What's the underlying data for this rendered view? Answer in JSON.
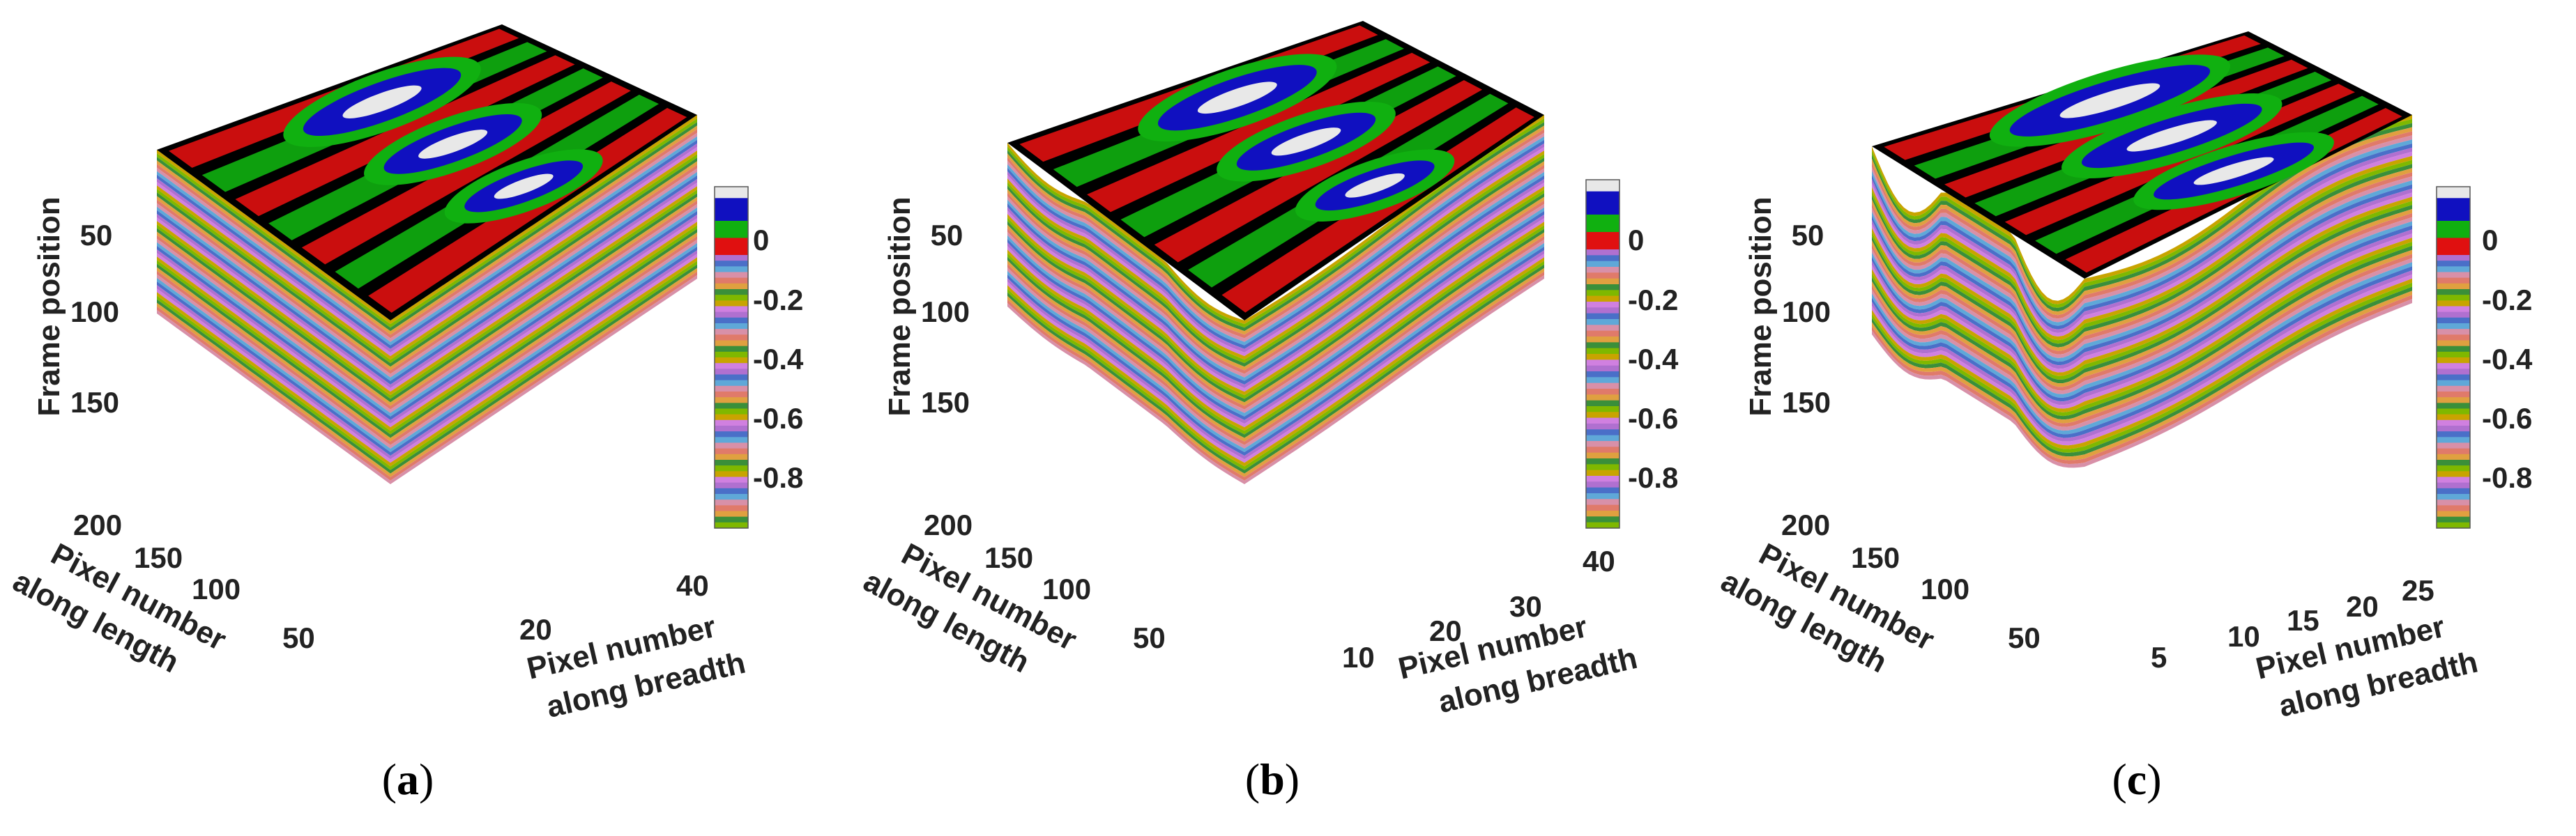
{
  "chart_data": [
    {
      "type": "surface-3d",
      "panel_label": "a",
      "z_label": "Frame position",
      "x_label": [
        "Pixel number",
        "along length"
      ],
      "y_label": [
        "Pixel number",
        "along breadth"
      ],
      "z_ticks": [
        "50",
        "100",
        "150"
      ],
      "x_ticks": [
        "200",
        "150",
        "100",
        "50"
      ],
      "y_ticks": [
        "20",
        "40"
      ],
      "colorbar_ticks": [
        "0",
        "-0.2",
        "-0.4",
        "-0.6",
        "-0.8"
      ],
      "colorbar_range": [
        -0.9,
        0.15
      ],
      "top_blob_count": 3,
      "side_sag": 0.0
    },
    {
      "type": "surface-3d",
      "panel_label": "b",
      "z_label": "Frame position",
      "x_label": [
        "Pixel number",
        "along length"
      ],
      "y_label": [
        "Pixel number",
        "along breadth"
      ],
      "z_ticks": [
        "50",
        "100",
        "150"
      ],
      "x_ticks": [
        "200",
        "150",
        "100",
        "50"
      ],
      "y_ticks": [
        "10",
        "20",
        "30",
        "40"
      ],
      "colorbar_ticks": [
        "0",
        "-0.2",
        "-0.4",
        "-0.6",
        "-0.8"
      ],
      "colorbar_range": [
        -0.9,
        0.15
      ],
      "top_blob_count": 3,
      "side_sag": 0.25
    },
    {
      "type": "surface-3d",
      "panel_label": "c",
      "z_label": "Frame position",
      "x_label": [
        "Pixel number",
        "along length"
      ],
      "y_label": [
        "Pixel number",
        "along breadth"
      ],
      "z_ticks": [
        "50",
        "100",
        "150"
      ],
      "x_ticks": [
        "200",
        "150",
        "100",
        "50"
      ],
      "y_ticks": [
        "5",
        "10",
        "15",
        "20",
        "25"
      ],
      "colorbar_ticks": [
        "0",
        "-0.2",
        "-0.4",
        "-0.6",
        "-0.8"
      ],
      "colorbar_range": [
        -0.9,
        0.15
      ],
      "top_blob_count": 3,
      "side_sag": 1.0
    }
  ],
  "colors": {
    "band_cycle": [
      "#c8a400",
      "#7fb800",
      "#3a8f3a",
      "#e0a040",
      "#e07a6a",
      "#d890a8",
      "#5fa8d8",
      "#4a6fc8",
      "#b070d0",
      "#d080e0"
    ],
    "top_low": "#000000",
    "top_green": "#10b010",
    "top_red": "#e01010",
    "top_blue": "#1010c0",
    "top_white": "#e8e8e8"
  }
}
